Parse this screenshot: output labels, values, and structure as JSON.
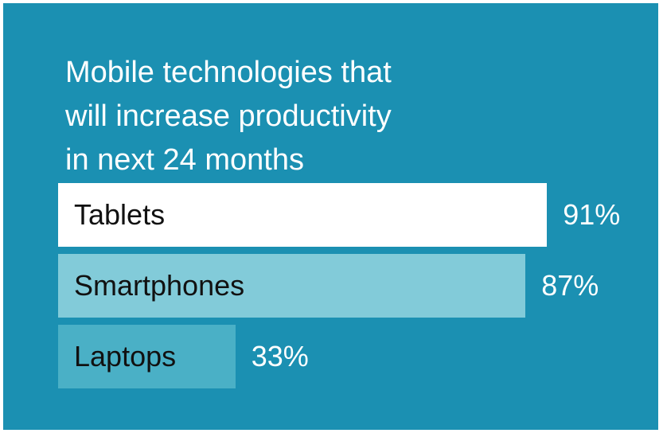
{
  "colors": {
    "background": "#1b90b2",
    "bar_colors": [
      "#ffffff",
      "#82cbd9",
      "#4ab0c6"
    ]
  },
  "chart_data": {
    "type": "bar",
    "orientation": "horizontal",
    "title": "Mobile technologies that will increase productivity in next 24 months",
    "title_lines": [
      "Mobile technologies that",
      "will increase productivity",
      "in next 24 months"
    ],
    "categories": [
      "Tablets",
      "Smartphones",
      "Laptops"
    ],
    "values": [
      91,
      87,
      33
    ],
    "value_labels": [
      "91%",
      "87%",
      "33%"
    ],
    "unit": "%",
    "xlim": [
      0,
      100
    ],
    "grid": false,
    "legend": "none"
  }
}
